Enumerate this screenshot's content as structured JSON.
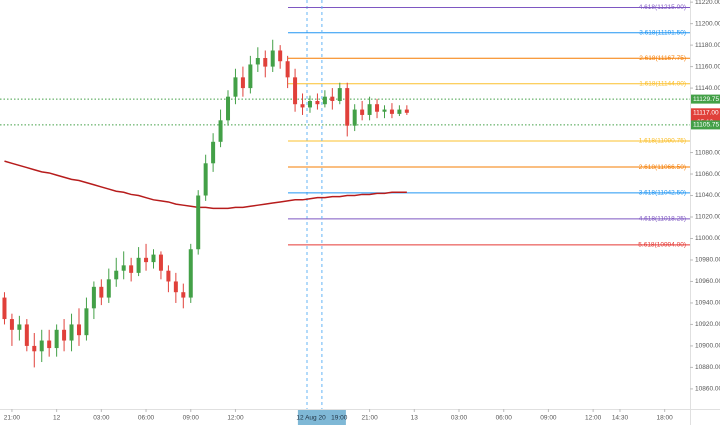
{
  "chart_data": {
    "type": "candlestick",
    "up_color": "#43a047",
    "down_color": "#e0403a",
    "candles": [
      [
        10945,
        10950,
        10920,
        10925
      ],
      [
        10925,
        10930,
        10900,
        10915
      ],
      [
        10915,
        10928,
        10905,
        10920
      ],
      [
        10920,
        10925,
        10895,
        10900
      ],
      [
        10900,
        10912,
        10880,
        10895
      ],
      [
        10895,
        10915,
        10885,
        10905
      ],
      [
        10905,
        10915,
        10890,
        10898
      ],
      [
        10898,
        10920,
        10890,
        10915
      ],
      [
        10915,
        10925,
        10895,
        10905
      ],
      [
        10905,
        10930,
        10895,
        10920
      ],
      [
        10920,
        10935,
        10900,
        10910
      ],
      [
        10910,
        10945,
        10905,
        10935
      ],
      [
        10935,
        10960,
        10925,
        10955
      ],
      [
        10955,
        10962,
        10938,
        10945
      ],
      [
        10945,
        10972,
        10940,
        10962
      ],
      [
        10962,
        10982,
        10955,
        10970
      ],
      [
        10970,
        10988,
        10962,
        10975
      ],
      [
        10975,
        10982,
        10960,
        10968
      ],
      [
        10968,
        10992,
        10965,
        10982
      ],
      [
        10982,
        10995,
        10970,
        10978
      ],
      [
        10978,
        10990,
        10972,
        10985
      ],
      [
        10985,
        10988,
        10962,
        10970
      ],
      [
        10970,
        10975,
        10950,
        10960
      ],
      [
        10960,
        10968,
        10940,
        10950
      ],
      [
        10950,
        10958,
        10935,
        10945
      ],
      [
        10945,
        10995,
        10940,
        10990
      ],
      [
        10990,
        11045,
        10985,
        11040
      ],
      [
        11040,
        11078,
        11035,
        11070
      ],
      [
        11070,
        11098,
        11062,
        11090
      ],
      [
        11090,
        11120,
        11085,
        11110
      ],
      [
        11110,
        11138,
        11105,
        11132
      ],
      [
        11132,
        11158,
        11125,
        11150
      ],
      [
        11150,
        11160,
        11132,
        11140
      ],
      [
        11140,
        11170,
        11135,
        11162
      ],
      [
        11162,
        11178,
        11155,
        11168
      ],
      [
        11168,
        11175,
        11150,
        11160
      ],
      [
        11160,
        11185,
        11155,
        11175
      ],
      [
        11175,
        11180,
        11158,
        11165
      ],
      [
        11165,
        11170,
        11140,
        11150
      ],
      [
        11150,
        11158,
        11118,
        11125
      ],
      [
        11125,
        11135,
        11115,
        11122
      ],
      [
        11122,
        11133,
        11117,
        11128
      ],
      [
        11128,
        11135,
        11120,
        11125
      ],
      [
        11125,
        11138,
        11122,
        11132
      ],
      [
        11132,
        11140,
        11120,
        11128
      ],
      [
        11128,
        11145,
        11125,
        11140
      ],
      [
        11140,
        11145,
        11095,
        11105
      ],
      [
        11105,
        11125,
        11100,
        11120
      ],
      [
        11120,
        11128,
        11110,
        11115
      ],
      [
        11115,
        11132,
        11110,
        11125
      ],
      [
        11125,
        11130,
        11112,
        11118
      ],
      [
        11118,
        11124,
        11112,
        11120
      ],
      [
        11120,
        11126,
        11112,
        11116
      ],
      [
        11116,
        11124,
        11114,
        11120
      ],
      [
        11120,
        11124,
        11115,
        11117
      ]
    ],
    "moving_average": {
      "color": "#b71c1c",
      "values": [
        11072,
        11070,
        11068,
        11066,
        11064,
        11062,
        11061,
        11059,
        11057,
        11055,
        11054,
        11052,
        11050,
        11048,
        11046,
        11044,
        11043,
        11041,
        11040,
        11038,
        11036,
        11035,
        11034,
        11032,
        11031,
        11030,
        11029,
        11029,
        11028,
        11028,
        11028,
        11029,
        11029,
        11030,
        11031,
        11032,
        11033,
        11034,
        11035,
        11036,
        11036,
        11037,
        11038,
        11038,
        11039,
        11039,
        11040,
        11040,
        11041,
        11041,
        11042,
        11042,
        11043,
        11043,
        11043
      ]
    },
    "fib_levels": [
      {
        "label": "4.618(11215.00)",
        "value": 11215,
        "color": "#7e57c2"
      },
      {
        "label": "3.618(11191.50)",
        "value": 11191.5,
        "color": "#2196f3"
      },
      {
        "label": "2.618(11167.75)",
        "value": 11167.75,
        "color": "#f57c00"
      },
      {
        "label": "1.618(11144.00)",
        "value": 11144,
        "color": "#fbc02d"
      },
      {
        "label": "1.618(11090.75)",
        "value": 11090.75,
        "color": "#fbc02d"
      },
      {
        "label": "2.618(11066.50)",
        "value": 11066.5,
        "color": "#f57c00"
      },
      {
        "label": "3.618(11042.50)",
        "value": 11042.5,
        "color": "#2196f3"
      },
      {
        "label": "4.618(11018.25)",
        "value": 11018.25,
        "color": "#7e57c2"
      },
      {
        "label": "5.618(10994.00)",
        "value": 10994,
        "color": "#e53935"
      }
    ],
    "price_tags": [
      {
        "label": "11129.75",
        "value": 11129.75,
        "color": "#43a047"
      },
      {
        "label": "11117.00",
        "value": 11117,
        "color": "#e0403a",
        "countdown": "05:19"
      },
      {
        "label": "11105.75",
        "value": 11105.75,
        "color": "#43a047"
      }
    ],
    "ylim": [
      10845,
      11222
    ],
    "yticks": [
      {
        "value": 11220,
        "label": "11220.00"
      },
      {
        "value": 11200,
        "label": "11200.00"
      },
      {
        "value": 11180,
        "label": "11180.00"
      },
      {
        "value": 11160,
        "label": "11160.00"
      },
      {
        "value": 11140,
        "label": "11140.00"
      },
      {
        "value": 11080,
        "label": "11080.00"
      },
      {
        "value": 11060,
        "label": "11060.00"
      },
      {
        "value": 11040,
        "label": "11040.00"
      },
      {
        "value": 11020,
        "label": "11020.00"
      },
      {
        "value": 11000,
        "label": "11000.00"
      },
      {
        "value": 10980,
        "label": "10980.00"
      },
      {
        "value": 10960,
        "label": "10960.00"
      },
      {
        "value": 10940,
        "label": "10940.00"
      },
      {
        "value": 10920,
        "label": "10920.00"
      },
      {
        "value": 10900,
        "label": "10900.00"
      },
      {
        "value": 10880,
        "label": "10880.00"
      },
      {
        "value": 10860,
        "label": "10860.00"
      }
    ],
    "xlim": [
      -0.6,
      92
    ],
    "xticks": [
      {
        "value": 1,
        "label": "21:00"
      },
      {
        "value": 7,
        "label": "12"
      },
      {
        "value": 13,
        "label": "03:00"
      },
      {
        "value": 19,
        "label": "06:00"
      },
      {
        "value": 25,
        "label": "09:00"
      },
      {
        "value": 31,
        "label": "12:00"
      },
      {
        "value": 49,
        "label": "21:00"
      },
      {
        "value": 55,
        "label": "13"
      },
      {
        "value": 61,
        "label": "03:00"
      },
      {
        "value": 67,
        "label": "06:00"
      },
      {
        "value": 73,
        "label": "09:00"
      },
      {
        "value": 79,
        "label": "12:00"
      },
      {
        "value": 82.6,
        "label": "14:30"
      },
      {
        "value": 88.6,
        "label": "18:00"
      }
    ],
    "crosshair": {
      "value": 42.6,
      "label": "12 Aug 20   19:00"
    }
  }
}
